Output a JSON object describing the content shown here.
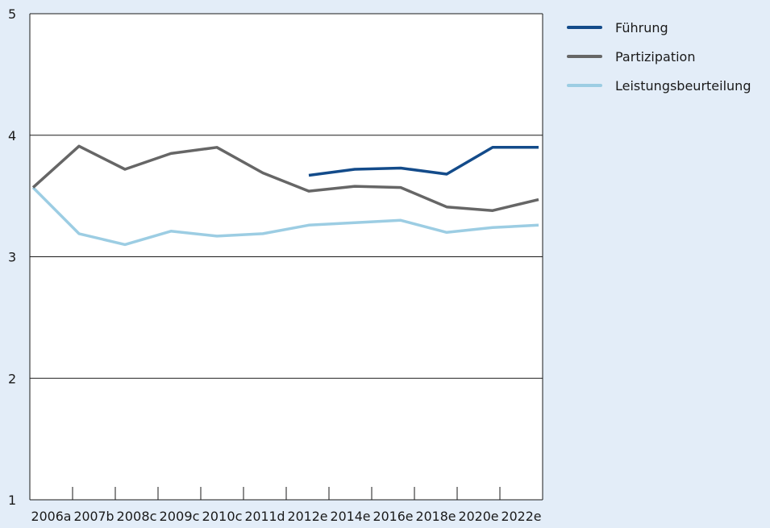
{
  "chart_data": {
    "type": "line",
    "title": "",
    "xlabel": "",
    "ylabel": "",
    "ylim": [
      1,
      5
    ],
    "yticks": [
      "1",
      "2",
      "3",
      "4",
      "5"
    ],
    "grid": true,
    "legend_position": "top-right",
    "categories": [
      "2006a",
      "2007b",
      "2008c",
      "2009c",
      "2010c",
      "2011d",
      "2012e",
      "2014e",
      "2016e",
      "2018e",
      "2020e",
      "2022e"
    ],
    "series": [
      {
        "name": "Führung",
        "color": "#134b8a",
        "values": [
          null,
          null,
          null,
          null,
          null,
          null,
          3.67,
          3.72,
          3.73,
          3.68,
          3.9,
          3.9
        ]
      },
      {
        "name": "Partizipation",
        "color": "#666666",
        "values": [
          3.57,
          3.91,
          3.72,
          3.85,
          3.9,
          3.69,
          3.54,
          3.58,
          3.57,
          3.41,
          3.38,
          3.47
        ]
      },
      {
        "name": "Leistungsbeurteilung",
        "color": "#9ccde3",
        "values": [
          3.57,
          3.19,
          3.1,
          3.21,
          3.17,
          3.19,
          3.26,
          3.28,
          3.3,
          3.2,
          3.24,
          3.26
        ]
      }
    ]
  }
}
